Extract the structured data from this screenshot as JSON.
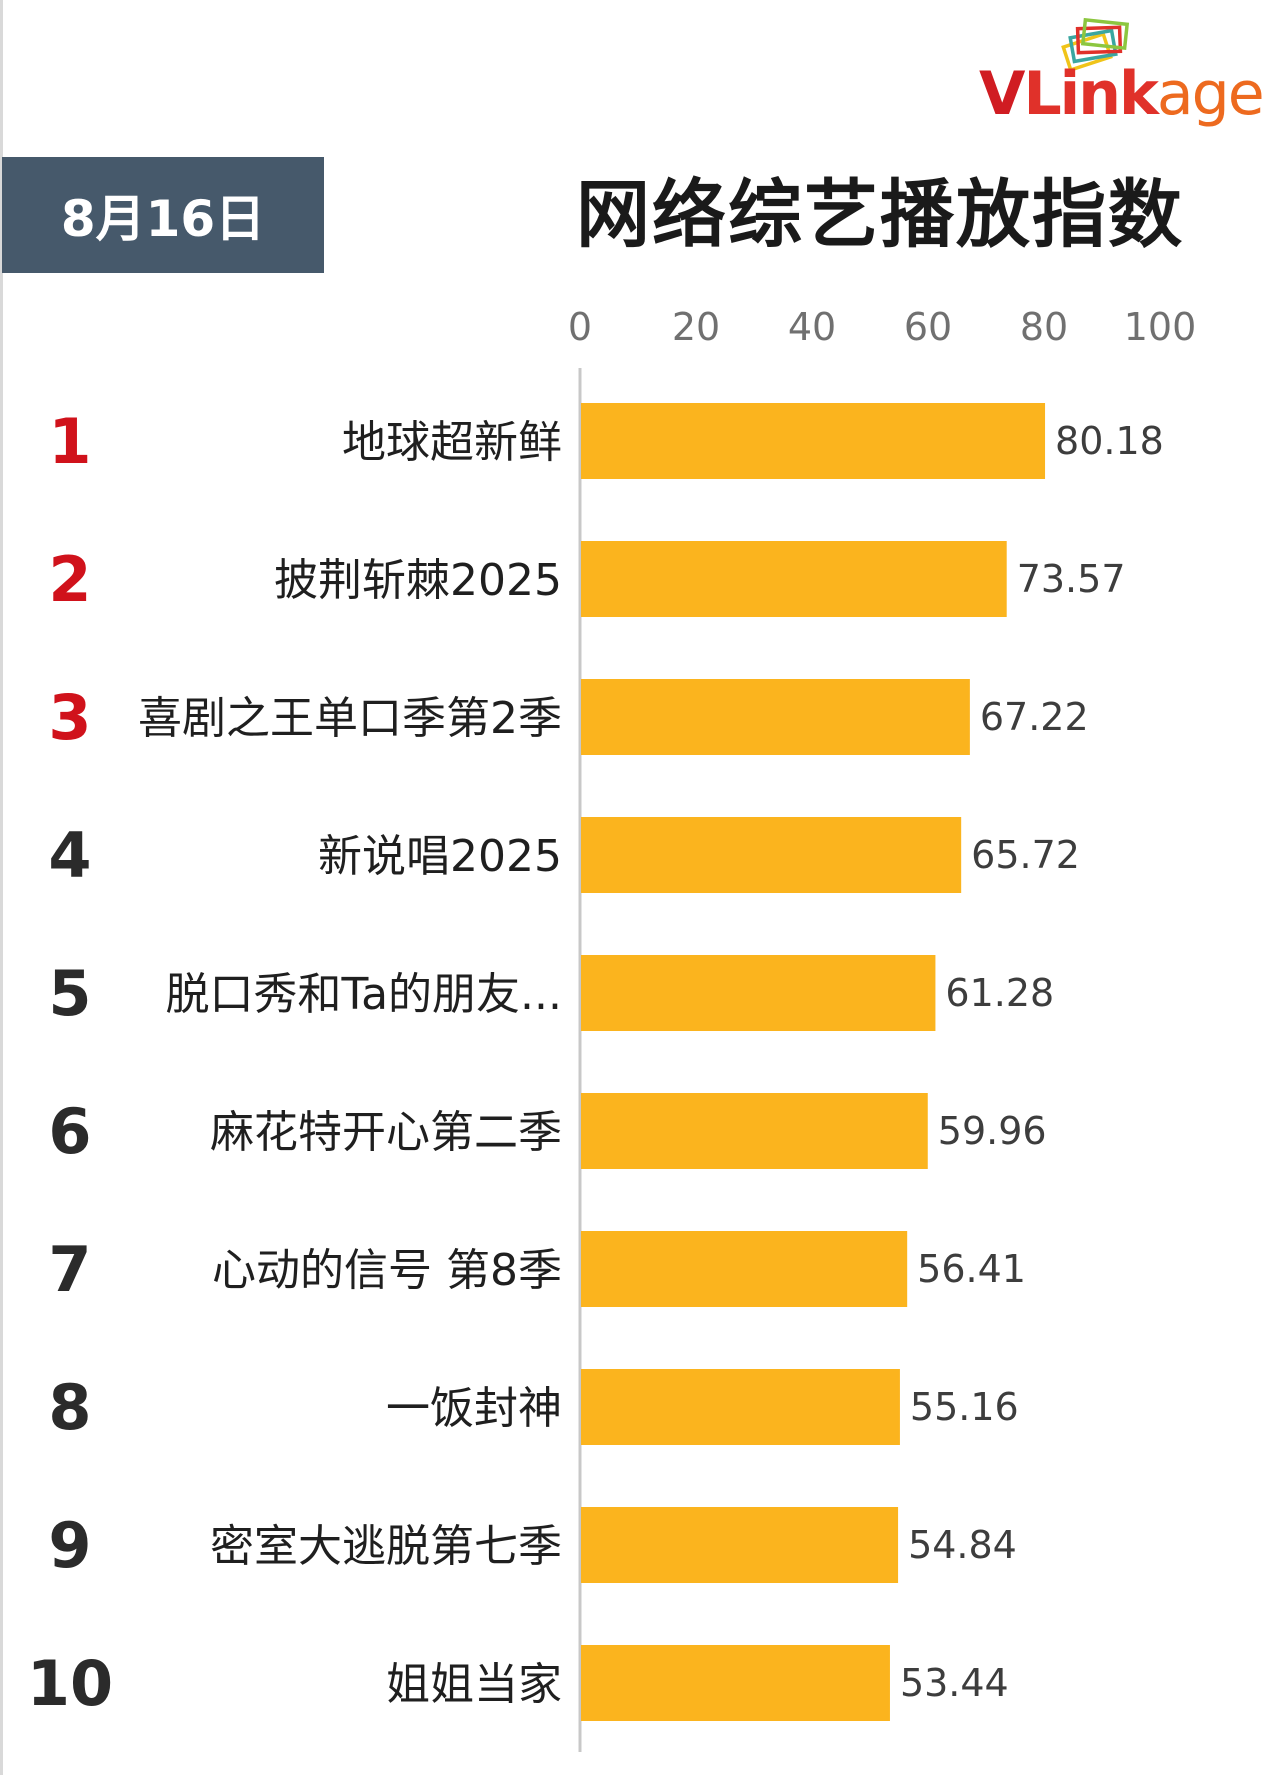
{
  "logo": {
    "brand_part1": "V",
    "brand_part2": "Link",
    "brand_part3": "age",
    "icon": "stacked-cards-icon"
  },
  "header": {
    "date": "8月16日",
    "title": "网络综艺播放指数"
  },
  "colors": {
    "bar": "#fbb41e",
    "top_rank": "#d0121b",
    "rank": "#2b2b2b",
    "date_box": "#46596b",
    "axis_line": "#c8c8c8"
  },
  "chart_data": {
    "type": "bar",
    "orientation": "horizontal",
    "xlim": [
      0,
      100
    ],
    "x_ticks": [
      "0",
      "20",
      "40",
      "60",
      "80",
      "100"
    ],
    "x_tick_values": [
      0,
      20,
      40,
      60,
      80,
      100
    ],
    "grid": false,
    "ranks": [
      "1",
      "2",
      "3",
      "4",
      "5",
      "6",
      "7",
      "8",
      "9",
      "10"
    ],
    "categories": [
      "地球超新鲜",
      "披荆斩棘2025",
      "喜剧之王单口季第2季",
      "新说唱2025",
      "脱口秀和Ta的朋友...",
      "麻花特开心第二季",
      "心动的信号 第8季",
      "一饭封神",
      "密室大逃脱第七季",
      "姐姐当家"
    ],
    "values": [
      80.18,
      73.57,
      67.22,
      65.72,
      61.28,
      59.96,
      56.41,
      55.16,
      54.84,
      53.44
    ],
    "value_labels": [
      "80.18",
      "73.57",
      "67.22",
      "65.72",
      "61.28",
      "59.96",
      "56.41",
      "55.16",
      "54.84",
      "53.44"
    ]
  }
}
